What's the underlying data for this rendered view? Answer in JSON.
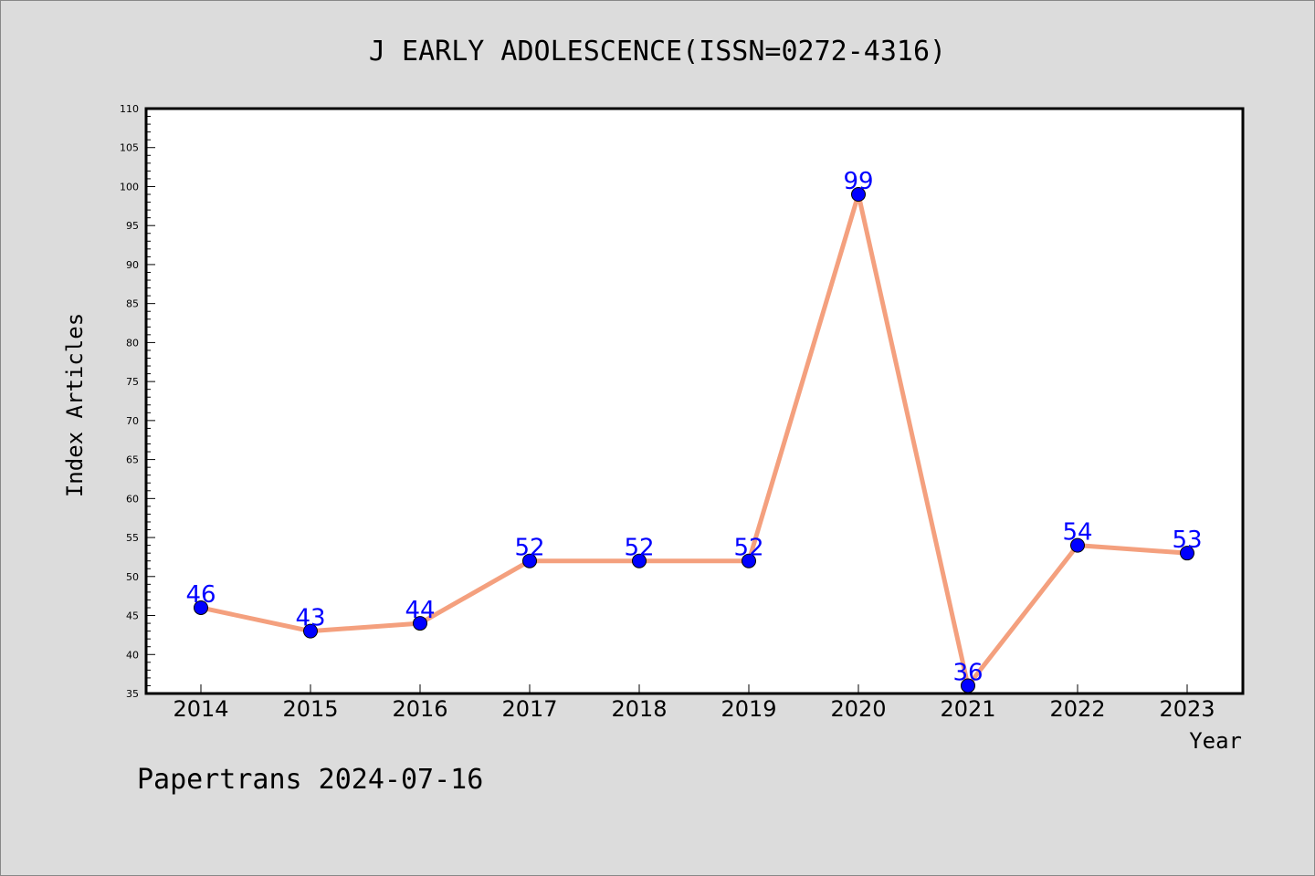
{
  "chart_data": {
    "type": "line",
    "title": "J EARLY ADOLESCENCE(ISSN=0272-4316)",
    "xlabel": "Year",
    "ylabel": "Index Articles",
    "categories": [
      "2014",
      "2015",
      "2016",
      "2017",
      "2018",
      "2019",
      "2020",
      "2021",
      "2022",
      "2023"
    ],
    "series": [
      {
        "values": [
          46,
          43,
          44,
          52,
          52,
          52,
          99,
          36,
          54,
          53
        ]
      }
    ],
    "ylim": [
      35,
      110
    ],
    "yticks": [
      35,
      40,
      45,
      50,
      55,
      60,
      65,
      70,
      75,
      80,
      85,
      90,
      95,
      100,
      105,
      110
    ],
    "grid": false,
    "legend": "none",
    "colors": {
      "line": "#f4a07e",
      "marker": "#0000ff",
      "data_label": "#0000ff",
      "background": "#dcdcdc",
      "plot_background": "#ffffff"
    }
  },
  "footer": {
    "text": "Papertrans 2024-07-16"
  }
}
